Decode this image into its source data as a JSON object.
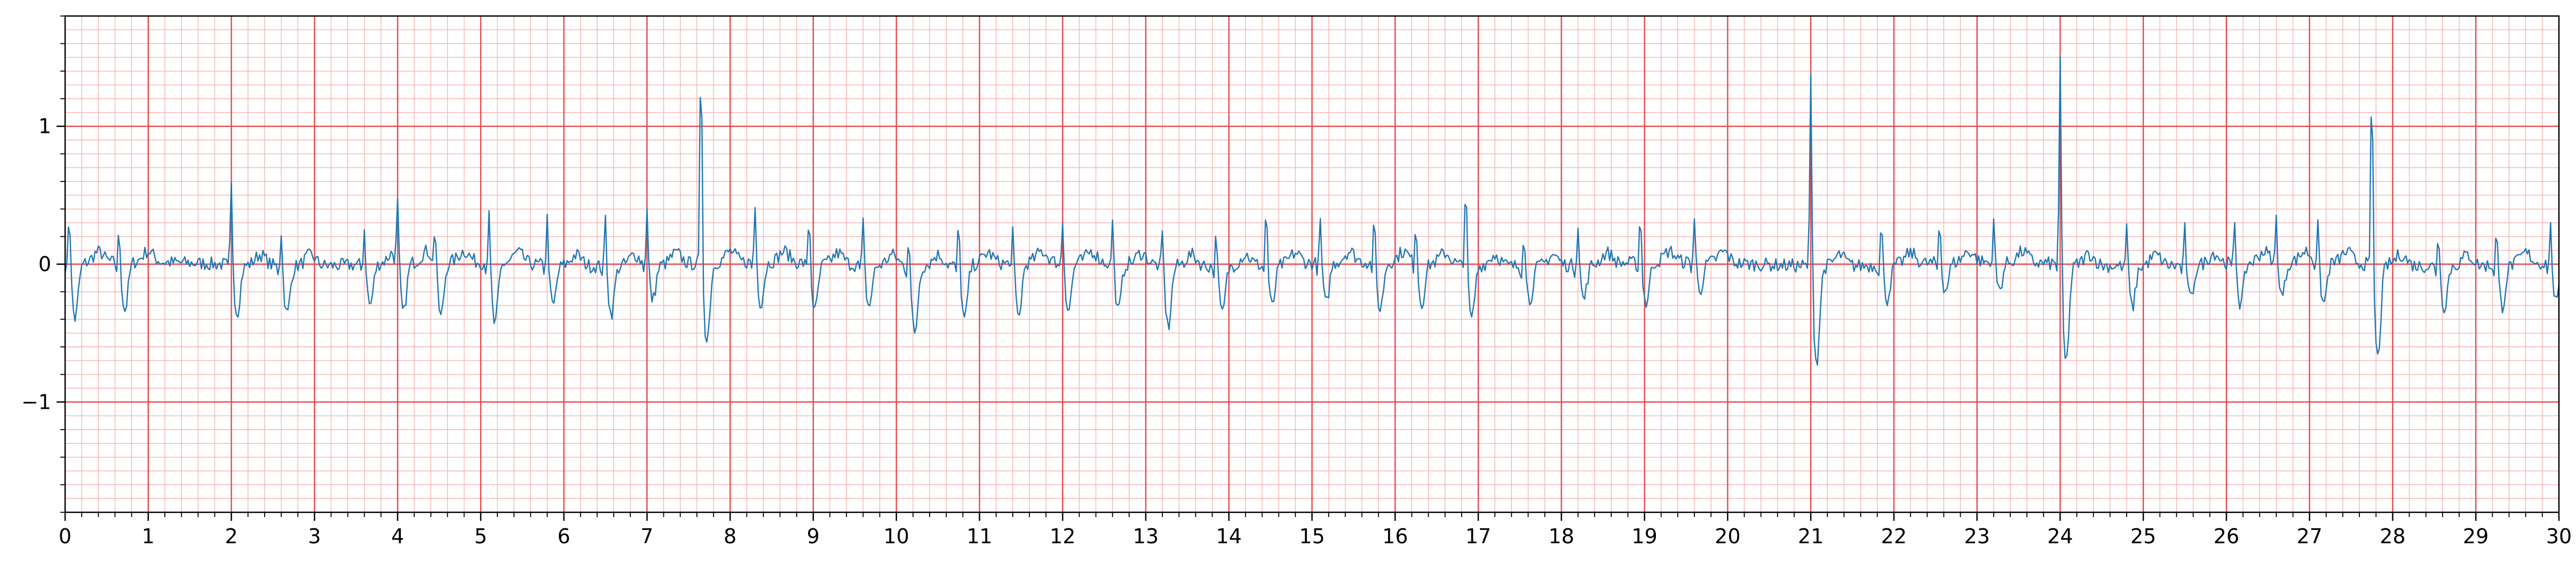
{
  "chart_data": {
    "type": "line",
    "title": "",
    "xlabel": "",
    "ylabel": "",
    "xlim": [
      0,
      30
    ],
    "ylim": [
      -1.8,
      1.8
    ],
    "grid": true,
    "x_ticks": [
      "0",
      "1",
      "2",
      "3",
      "4",
      "5",
      "6",
      "7",
      "8",
      "9",
      "10",
      "11",
      "12",
      "13",
      "14",
      "15",
      "16",
      "17",
      "18",
      "19",
      "20",
      "21",
      "22",
      "23",
      "24",
      "25",
      "26",
      "27",
      "28",
      "29",
      "30"
    ],
    "y_ticks": [
      {
        "value": 1,
        "label": "1"
      },
      {
        "value": 0,
        "label": "0"
      },
      {
        "value": -1,
        "label": "−1"
      }
    ],
    "colors": {
      "trace": "#1f77b4",
      "major_grid": "#e8474a",
      "minor_grid": "#f7b3b3",
      "frame": "#000000"
    },
    "series": [
      {
        "sample_rate_hz": 50,
        "beat_times": [
          0.05,
          0.65,
          2.0,
          2.6,
          3.6,
          4.0,
          4.45,
          5.1,
          5.8,
          6.5,
          7.0,
          7.65,
          8.3,
          8.95,
          9.6,
          10.15,
          10.75,
          11.4,
          12.0,
          12.6,
          13.2,
          13.85,
          14.45,
          15.1,
          15.75,
          16.25,
          16.85,
          17.55,
          18.2,
          18.95,
          19.6,
          21.0,
          21.85,
          22.55,
          23.2,
          24.0,
          24.8,
          25.5,
          26.1,
          26.6,
          27.1,
          27.75,
          28.55,
          29.25,
          29.9
        ],
        "beat_amplitudes": [
          0.45,
          0.27,
          0.62,
          0.3,
          0.3,
          0.43,
          0.3,
          0.4,
          0.38,
          0.4,
          0.43,
          1.65,
          0.45,
          0.4,
          0.35,
          0.3,
          0.35,
          0.3,
          0.35,
          0.35,
          0.3,
          0.3,
          0.48,
          0.35,
          0.35,
          0.35,
          0.72,
          0.3,
          0.35,
          0.4,
          0.35,
          1.45,
          0.35,
          0.35,
          0.35,
          1.58,
          0.35,
          0.3,
          0.35,
          0.35,
          0.3,
          1.48,
          0.3,
          0.3,
          0.3
        ],
        "beat_troughs": [
          -0.4,
          -0.35,
          -0.35,
          -0.35,
          -0.3,
          -0.38,
          -0.4,
          -0.45,
          -0.3,
          -0.35,
          -0.25,
          -0.57,
          -0.3,
          -0.35,
          -0.3,
          -0.5,
          -0.4,
          -0.4,
          -0.35,
          -0.35,
          -0.45,
          -0.35,
          -0.3,
          -0.3,
          -0.35,
          -0.3,
          -0.4,
          -0.25,
          -0.25,
          -0.3,
          -0.2,
          -0.7,
          -0.25,
          -0.2,
          -0.2,
          -0.72,
          -0.3,
          -0.25,
          -0.3,
          -0.25,
          -0.3,
          -0.68,
          -0.3,
          -0.3,
          -0.3
        ],
        "noise_level": 0.05
      }
    ]
  }
}
